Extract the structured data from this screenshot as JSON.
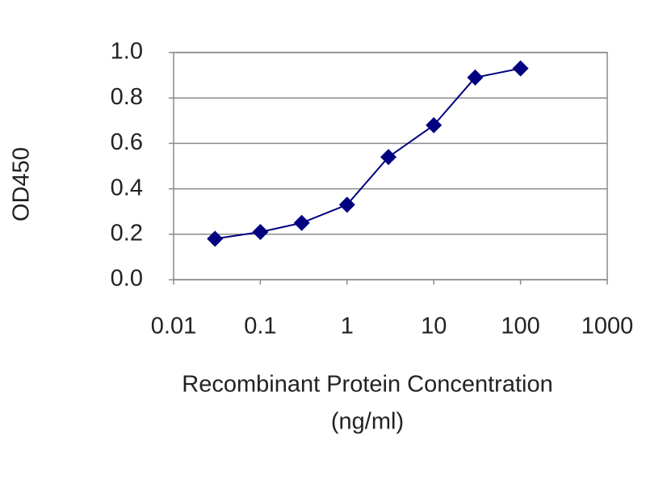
{
  "chart_data": {
    "type": "line",
    "ylabel": "OD450",
    "xlabel_lines": [
      "Recombinant Protein Concentration",
      "(ng/ml)"
    ],
    "x": [
      0.03,
      0.1,
      0.3,
      1,
      3,
      10,
      30,
      100
    ],
    "values": [
      0.18,
      0.21,
      0.25,
      0.33,
      0.54,
      0.68,
      0.89,
      0.93
    ],
    "color": "#000080",
    "xscale": "log",
    "xlim": [
      0.01,
      1000
    ],
    "xticks": [
      0.01,
      0.1,
      1,
      10,
      100,
      1000
    ],
    "ylim": [
      0,
      1
    ],
    "yticks": [
      {
        "value": 0,
        "label": "0.0"
      },
      0.2,
      0.4,
      0.6,
      0.8,
      {
        "value": 1,
        "label": "1.0"
      }
    ],
    "grid": true
  }
}
